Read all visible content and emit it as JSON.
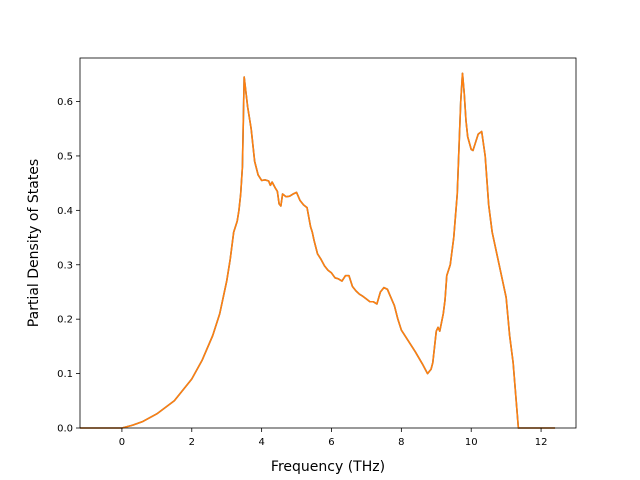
{
  "chart_data": {
    "type": "line",
    "title": "",
    "xlabel": "Frequency (THz)",
    "ylabel": "Partial Density of States",
    "xlim": [
      -1.2,
      13.0
    ],
    "ylim": [
      0.0,
      0.68
    ],
    "xticks": [
      0,
      2,
      4,
      6,
      8,
      10,
      12
    ],
    "xtick_labels": [
      "0",
      "2",
      "4",
      "6",
      "8",
      "10",
      "12"
    ],
    "yticks": [
      0.0,
      0.1,
      0.2,
      0.3,
      0.4,
      0.5,
      0.6
    ],
    "ytick_labels": [
      "0.0",
      "0.1",
      "0.2",
      "0.3",
      "0.4",
      "0.5",
      "0.6"
    ],
    "grid": false,
    "legend": "none",
    "series": [
      {
        "color": "#1f77b4",
        "x": [
          -1.2,
          0.0,
          0.3,
          0.6,
          1.0,
          1.5,
          2.0,
          2.3,
          2.6,
          2.8,
          3.0,
          3.1,
          3.2,
          3.3,
          3.35,
          3.4,
          3.45,
          3.5,
          3.6,
          3.65,
          3.7,
          3.8,
          3.9,
          4.0,
          4.1,
          4.2,
          4.25,
          4.3,
          4.4,
          4.45,
          4.5,
          4.55,
          4.6,
          4.7,
          4.8,
          4.9,
          5.0,
          5.1,
          5.2,
          5.3,
          5.4,
          5.45,
          5.5,
          5.6,
          5.7,
          5.8,
          5.9,
          6.0,
          6.1,
          6.2,
          6.3,
          6.4,
          6.5,
          6.6,
          6.7,
          6.8,
          6.9,
          7.0,
          7.1,
          7.2,
          7.3,
          7.4,
          7.5,
          7.6,
          7.7,
          7.8,
          7.9,
          8.0,
          8.2,
          8.4,
          8.6,
          8.75,
          8.85,
          8.9,
          9.0,
          9.05,
          9.1,
          9.2,
          9.25,
          9.3,
          9.4,
          9.5,
          9.6,
          9.7,
          9.75,
          9.8,
          9.85,
          9.9,
          10.0,
          10.05,
          10.1,
          10.2,
          10.3,
          10.4,
          10.5,
          10.6,
          10.8,
          11.0,
          11.1,
          11.2,
          11.3,
          11.35,
          11.5,
          12.0,
          12.4
        ],
        "y": [
          0.0,
          0.0,
          0.005,
          0.012,
          0.026,
          0.05,
          0.09,
          0.125,
          0.17,
          0.21,
          0.27,
          0.31,
          0.36,
          0.38,
          0.4,
          0.43,
          0.48,
          0.645,
          0.59,
          0.57,
          0.55,
          0.49,
          0.465,
          0.455,
          0.456,
          0.454,
          0.446,
          0.452,
          0.44,
          0.435,
          0.412,
          0.408,
          0.43,
          0.425,
          0.426,
          0.43,
          0.433,
          0.418,
          0.41,
          0.405,
          0.37,
          0.36,
          0.345,
          0.32,
          0.31,
          0.298,
          0.29,
          0.285,
          0.276,
          0.274,
          0.27,
          0.28,
          0.28,
          0.26,
          0.252,
          0.246,
          0.242,
          0.237,
          0.232,
          0.232,
          0.228,
          0.25,
          0.258,
          0.255,
          0.24,
          0.225,
          0.2,
          0.18,
          0.16,
          0.14,
          0.118,
          0.1,
          0.108,
          0.12,
          0.178,
          0.185,
          0.178,
          0.21,
          0.235,
          0.28,
          0.3,
          0.35,
          0.43,
          0.6,
          0.652,
          0.615,
          0.565,
          0.535,
          0.512,
          0.51,
          0.52,
          0.54,
          0.545,
          0.5,
          0.41,
          0.36,
          0.3,
          0.24,
          0.17,
          0.12,
          0.04,
          0.0,
          0.0,
          0.0,
          0.0
        ]
      },
      {
        "color": "#ff7f0e",
        "x": [
          -1.2,
          0.0,
          0.3,
          0.6,
          1.0,
          1.5,
          2.0,
          2.3,
          2.6,
          2.8,
          3.0,
          3.1,
          3.2,
          3.3,
          3.35,
          3.4,
          3.45,
          3.5,
          3.6,
          3.65,
          3.7,
          3.8,
          3.9,
          4.0,
          4.1,
          4.2,
          4.25,
          4.3,
          4.4,
          4.45,
          4.5,
          4.55,
          4.6,
          4.7,
          4.8,
          4.9,
          5.0,
          5.1,
          5.2,
          5.3,
          5.4,
          5.45,
          5.5,
          5.6,
          5.7,
          5.8,
          5.9,
          6.0,
          6.1,
          6.2,
          6.3,
          6.4,
          6.5,
          6.6,
          6.7,
          6.8,
          6.9,
          7.0,
          7.1,
          7.2,
          7.3,
          7.4,
          7.5,
          7.6,
          7.7,
          7.8,
          7.9,
          8.0,
          8.2,
          8.4,
          8.6,
          8.75,
          8.85,
          8.9,
          9.0,
          9.05,
          9.1,
          9.2,
          9.25,
          9.3,
          9.4,
          9.5,
          9.6,
          9.7,
          9.75,
          9.8,
          9.85,
          9.9,
          10.0,
          10.05,
          10.1,
          10.2,
          10.3,
          10.4,
          10.5,
          10.6,
          10.8,
          11.0,
          11.1,
          11.2,
          11.3,
          11.35,
          11.5,
          12.0,
          12.4
        ],
        "y": [
          0.0,
          0.0,
          0.005,
          0.012,
          0.026,
          0.05,
          0.09,
          0.125,
          0.17,
          0.21,
          0.27,
          0.31,
          0.36,
          0.38,
          0.4,
          0.43,
          0.48,
          0.645,
          0.59,
          0.57,
          0.55,
          0.49,
          0.465,
          0.455,
          0.456,
          0.454,
          0.446,
          0.452,
          0.44,
          0.435,
          0.412,
          0.408,
          0.43,
          0.425,
          0.426,
          0.43,
          0.433,
          0.418,
          0.41,
          0.405,
          0.37,
          0.36,
          0.345,
          0.32,
          0.31,
          0.298,
          0.29,
          0.285,
          0.276,
          0.274,
          0.27,
          0.28,
          0.28,
          0.26,
          0.252,
          0.246,
          0.242,
          0.237,
          0.232,
          0.232,
          0.228,
          0.25,
          0.258,
          0.255,
          0.24,
          0.225,
          0.2,
          0.18,
          0.16,
          0.14,
          0.118,
          0.1,
          0.108,
          0.12,
          0.178,
          0.185,
          0.178,
          0.21,
          0.235,
          0.28,
          0.3,
          0.35,
          0.43,
          0.6,
          0.652,
          0.615,
          0.565,
          0.535,
          0.512,
          0.51,
          0.52,
          0.54,
          0.545,
          0.5,
          0.41,
          0.36,
          0.3,
          0.24,
          0.17,
          0.12,
          0.04,
          0.0,
          0.0,
          0.0,
          0.0
        ]
      }
    ]
  }
}
